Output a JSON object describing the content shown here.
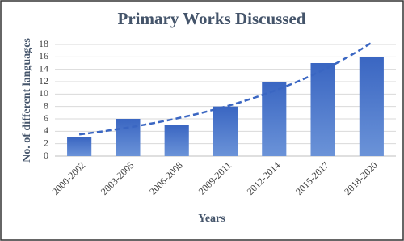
{
  "chart_data": {
    "type": "bar",
    "title": "Primary Works Discussed",
    "x_label": "Years",
    "y_label": "No. of different languages",
    "categories": [
      "2000-2002",
      "2003-2005",
      "2006-2008",
      "2009-2011",
      "2012-2014",
      "2015-2017",
      "2018-2020"
    ],
    "values": [
      3,
      6,
      5,
      8,
      12,
      15,
      16
    ],
    "color": "#4472c4",
    "ylim": [
      0,
      18
    ],
    "yticks": [
      0,
      2,
      4,
      6,
      8,
      10,
      12,
      14,
      16,
      18
    ],
    "grid": true,
    "trendline": "exponential"
  }
}
